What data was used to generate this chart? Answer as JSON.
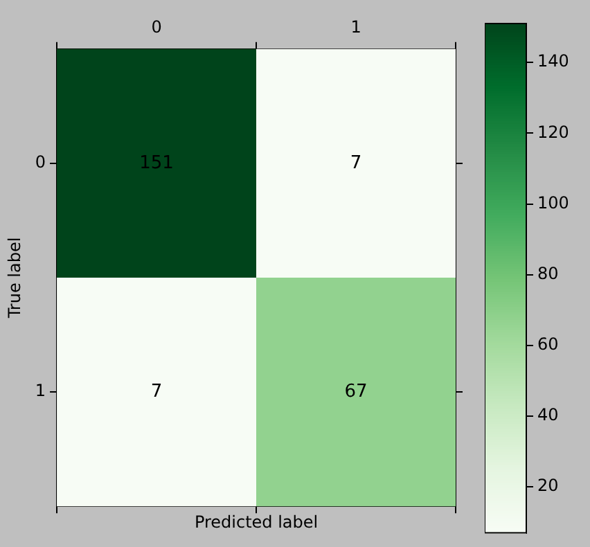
{
  "chart_data": {
    "type": "heatmap",
    "xlabel": "Predicted label",
    "ylabel": "True label",
    "categories": [
      "0",
      "1"
    ],
    "y_categories": [
      "0",
      "1"
    ],
    "cells": [
      [
        151,
        7
      ],
      [
        7,
        67
      ]
    ],
    "clim": [
      7,
      151
    ],
    "cticks": [
      20,
      40,
      60,
      80,
      100,
      120,
      140
    ],
    "data_labels": true
  }
}
